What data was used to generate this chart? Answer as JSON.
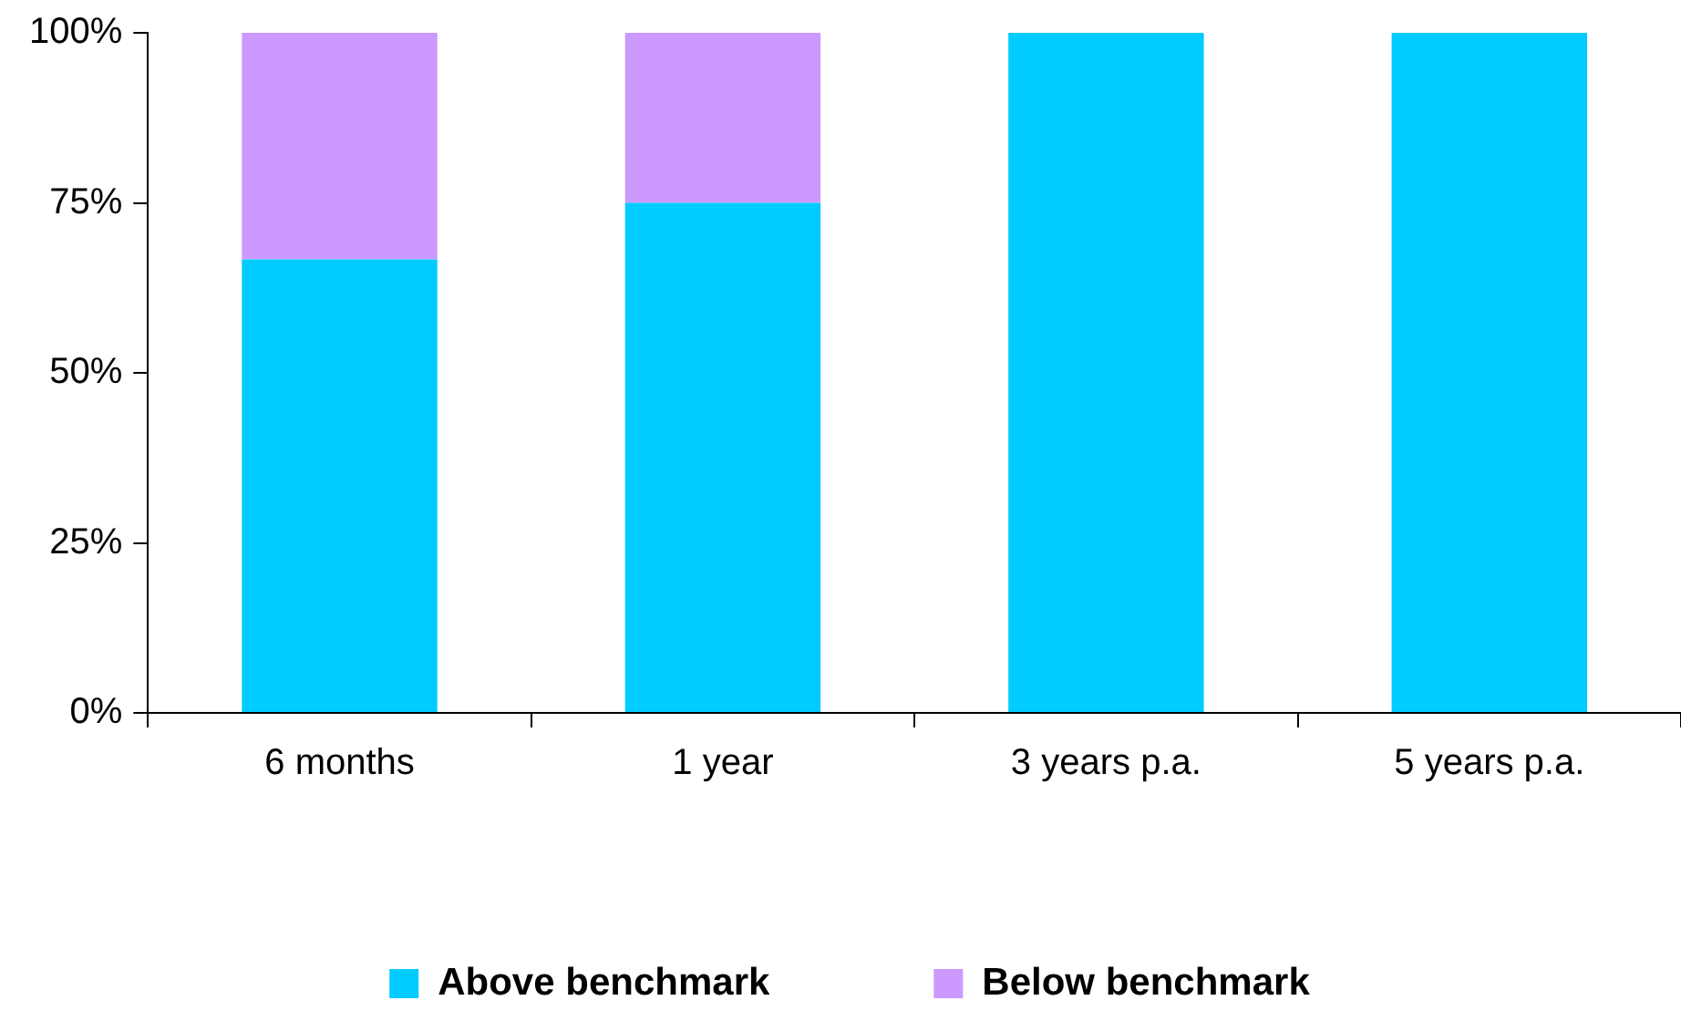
{
  "chart_data": {
    "type": "bar",
    "stacked": true,
    "categories": [
      "6 months",
      "1 year",
      "3 years p.a.",
      "5 years p.a."
    ],
    "series": [
      {
        "name": "Above benchmark",
        "color": "#00ccff",
        "values": [
          66.7,
          75,
          100,
          100
        ]
      },
      {
        "name": "Below benchmark",
        "color": "#cc99ff",
        "values": [
          33.3,
          25,
          0,
          0
        ]
      }
    ],
    "ylim": [
      0,
      100
    ],
    "yticks": [
      {
        "value": 0,
        "label": "0%"
      },
      {
        "value": 25,
        "label": "25%"
      },
      {
        "value": 50,
        "label": "50%"
      },
      {
        "value": 75,
        "label": "75%"
      },
      {
        "value": 100,
        "label": "100%"
      }
    ],
    "grid": false,
    "legend": "bottom"
  }
}
